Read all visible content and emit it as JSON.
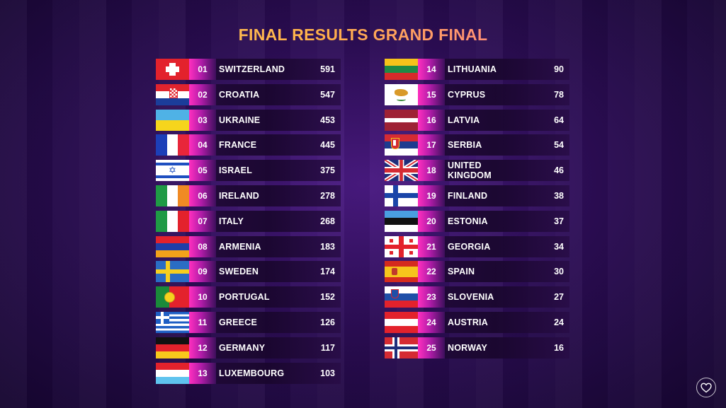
{
  "title": "FINAL RESULTS GRAND FINAL",
  "left": [
    {
      "rank": "01",
      "country": "SWITZERLAND",
      "points": "591",
      "flag": "switzerland-flag"
    },
    {
      "rank": "02",
      "country": "CROATIA",
      "points": "547",
      "flag": "croatia-flag"
    },
    {
      "rank": "03",
      "country": "UKRAINE",
      "points": "453",
      "flag": "ukraine-flag"
    },
    {
      "rank": "04",
      "country": "FRANCE",
      "points": "445",
      "flag": "france-flag"
    },
    {
      "rank": "05",
      "country": "ISRAEL",
      "points": "375",
      "flag": "israel-flag"
    },
    {
      "rank": "06",
      "country": "IRELAND",
      "points": "278",
      "flag": "ireland-flag"
    },
    {
      "rank": "07",
      "country": "ITALY",
      "points": "268",
      "flag": "italy-flag"
    },
    {
      "rank": "08",
      "country": "ARMENIA",
      "points": "183",
      "flag": "armenia-flag"
    },
    {
      "rank": "09",
      "country": "SWEDEN",
      "points": "174",
      "flag": "sweden-flag"
    },
    {
      "rank": "10",
      "country": "PORTUGAL",
      "points": "152",
      "flag": "portugal-flag"
    },
    {
      "rank": "11",
      "country": "GREECE",
      "points": "126",
      "flag": "greece-flag"
    },
    {
      "rank": "12",
      "country": "GERMANY",
      "points": "117",
      "flag": "germany-flag"
    },
    {
      "rank": "13",
      "country": "LUXEMBOURG",
      "points": "103",
      "flag": "luxembourg-flag"
    }
  ],
  "right": [
    {
      "rank": "14",
      "country": "LITHUANIA",
      "points": "90",
      "flag": "lithuania-flag"
    },
    {
      "rank": "15",
      "country": "CYPRUS",
      "points": "78",
      "flag": "cyprus-flag"
    },
    {
      "rank": "16",
      "country": "LATVIA",
      "points": "64",
      "flag": "latvia-flag"
    },
    {
      "rank": "17",
      "country": "SERBIA",
      "points": "54",
      "flag": "serbia-flag"
    },
    {
      "rank": "18",
      "country": "UNITED KINGDOM",
      "points": "46",
      "flag": "united-kingdom-flag"
    },
    {
      "rank": "19",
      "country": "FINLAND",
      "points": "38",
      "flag": "finland-flag"
    },
    {
      "rank": "20",
      "country": "ESTONIA",
      "points": "37",
      "flag": "estonia-flag"
    },
    {
      "rank": "21",
      "country": "GEORGIA",
      "points": "34",
      "flag": "georgia-flag"
    },
    {
      "rank": "22",
      "country": "SPAIN",
      "points": "30",
      "flag": "spain-flag"
    },
    {
      "rank": "23",
      "country": "SLOVENIA",
      "points": "27",
      "flag": "slovenia-flag"
    },
    {
      "rank": "24",
      "country": "AUSTRIA",
      "points": "24",
      "flag": "austria-flag"
    },
    {
      "rank": "25",
      "country": "NORWAY",
      "points": "16",
      "flag": "norway-flag"
    }
  ],
  "corner_icon": "heart-icon"
}
